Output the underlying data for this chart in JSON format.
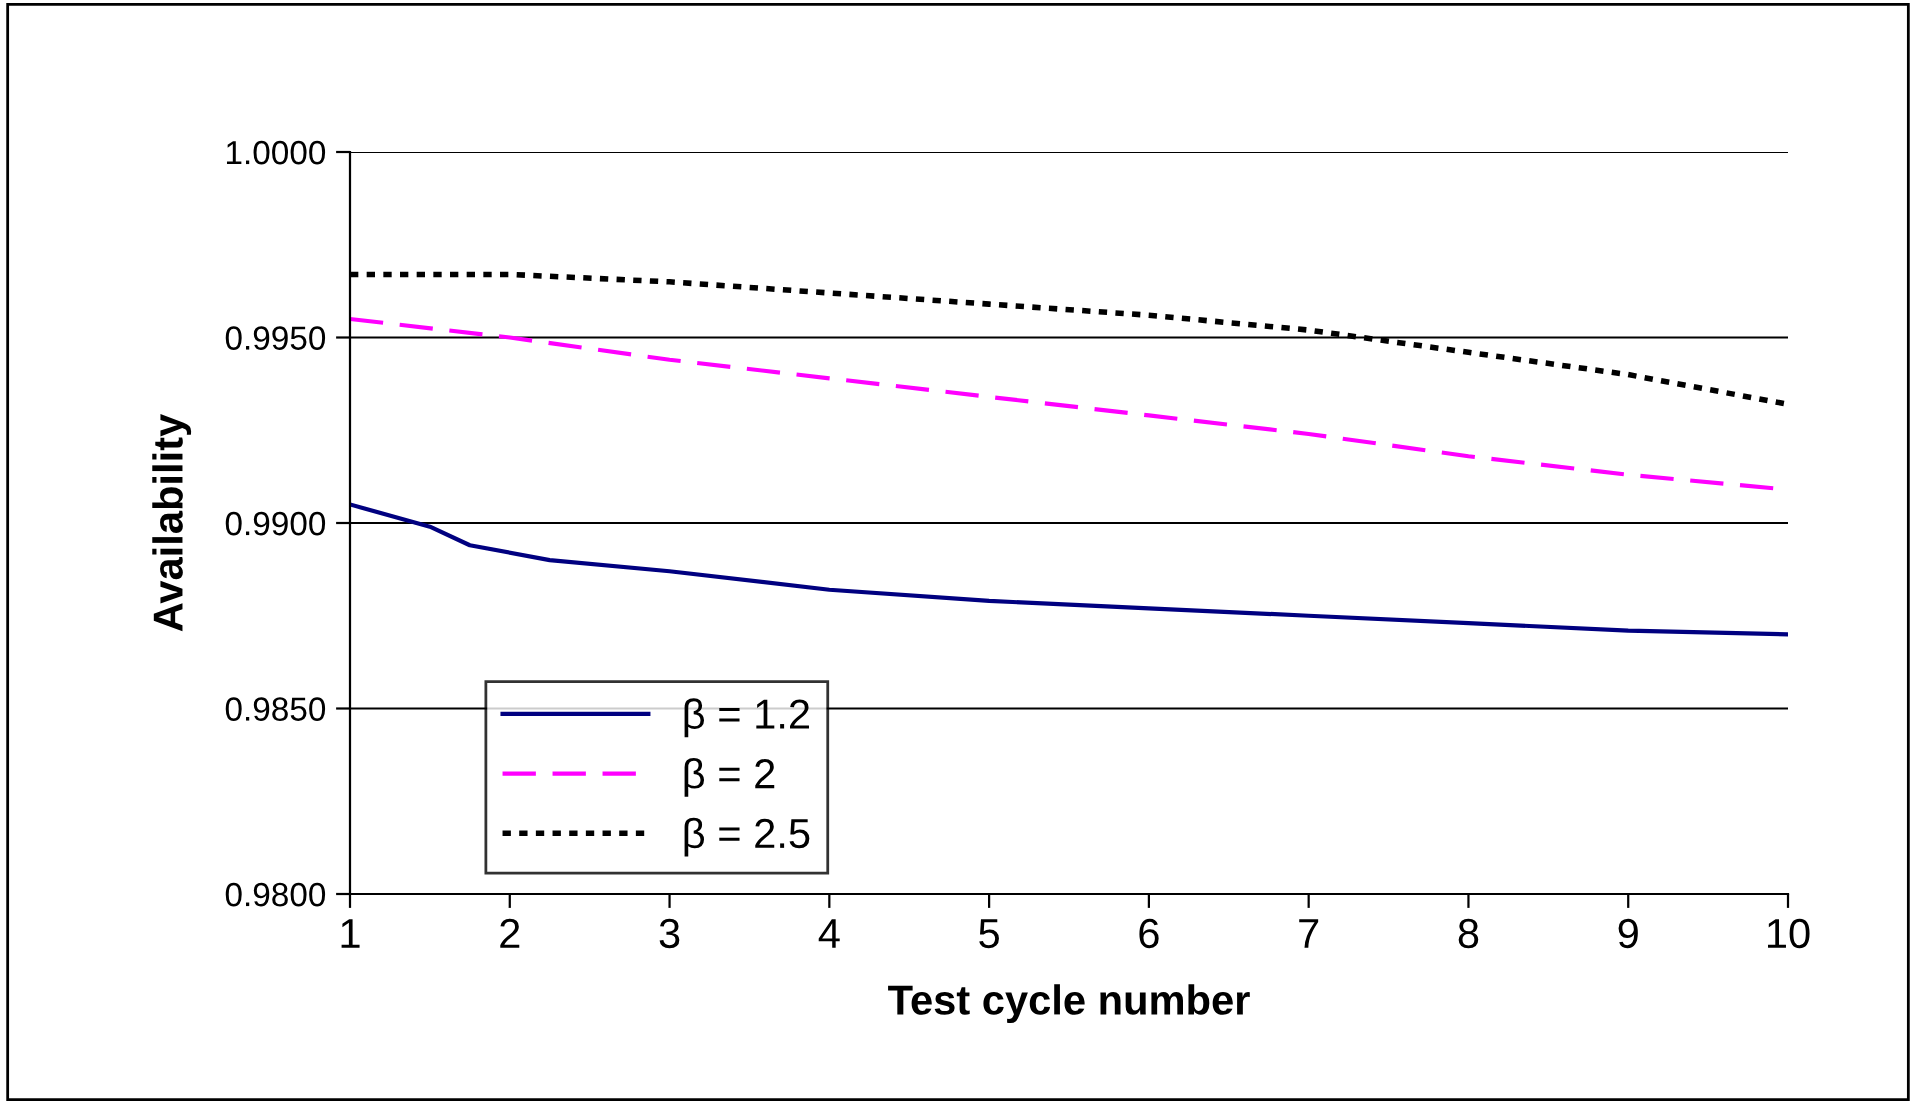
{
  "chart_data": {
    "type": "line",
    "xlabel": "Test cycle number",
    "ylabel": "Availability",
    "series": [
      {
        "name": "β = 1.2",
        "color": "#000080",
        "line_style": "solid",
        "x": [
          1,
          1.5,
          1.75,
          2.25,
          3,
          4,
          5,
          6,
          7,
          8,
          9,
          10
        ],
        "values": [
          0.9905,
          0.9899,
          0.9894,
          0.989,
          0.9887,
          0.9882,
          0.9879,
          0.9877,
          0.9875,
          0.9873,
          0.9871,
          0.987
        ]
      },
      {
        "name": "β = 2",
        "color": "#ff00ff",
        "line_style": "dashed",
        "x": [
          1,
          2,
          3,
          4,
          5,
          6,
          7,
          8,
          9,
          10
        ],
        "values": [
          0.9955,
          0.995,
          0.9944,
          0.9939,
          0.9934,
          0.9929,
          0.9924,
          0.9918,
          0.9913,
          0.9909
        ]
      },
      {
        "name": "β = 2.5",
        "color": "#000000",
        "line_style": "dotted",
        "x": [
          1,
          2,
          3,
          4,
          5,
          6,
          7,
          8,
          9,
          10
        ],
        "values": [
          0.9967,
          0.9967,
          0.9965,
          0.9962,
          0.9959,
          0.9956,
          0.9952,
          0.9946,
          0.994,
          0.9932
        ]
      }
    ],
    "xlim": [
      1,
      10
    ],
    "xticks": [
      1,
      2,
      3,
      4,
      5,
      6,
      7,
      8,
      9,
      10
    ],
    "ylim": [
      0.98,
      1.0
    ],
    "yticks": [
      {
        "value": 0.98,
        "label": "0.9800"
      },
      {
        "value": 0.985,
        "label": "0.9850"
      },
      {
        "value": 0.99,
        "label": "0.9900"
      },
      {
        "value": 0.995,
        "label": "0.9950"
      },
      {
        "value": 1.0,
        "label": "1.0000"
      }
    ],
    "grid": "y",
    "legend": "bottom left",
    "marker": "none"
  }
}
